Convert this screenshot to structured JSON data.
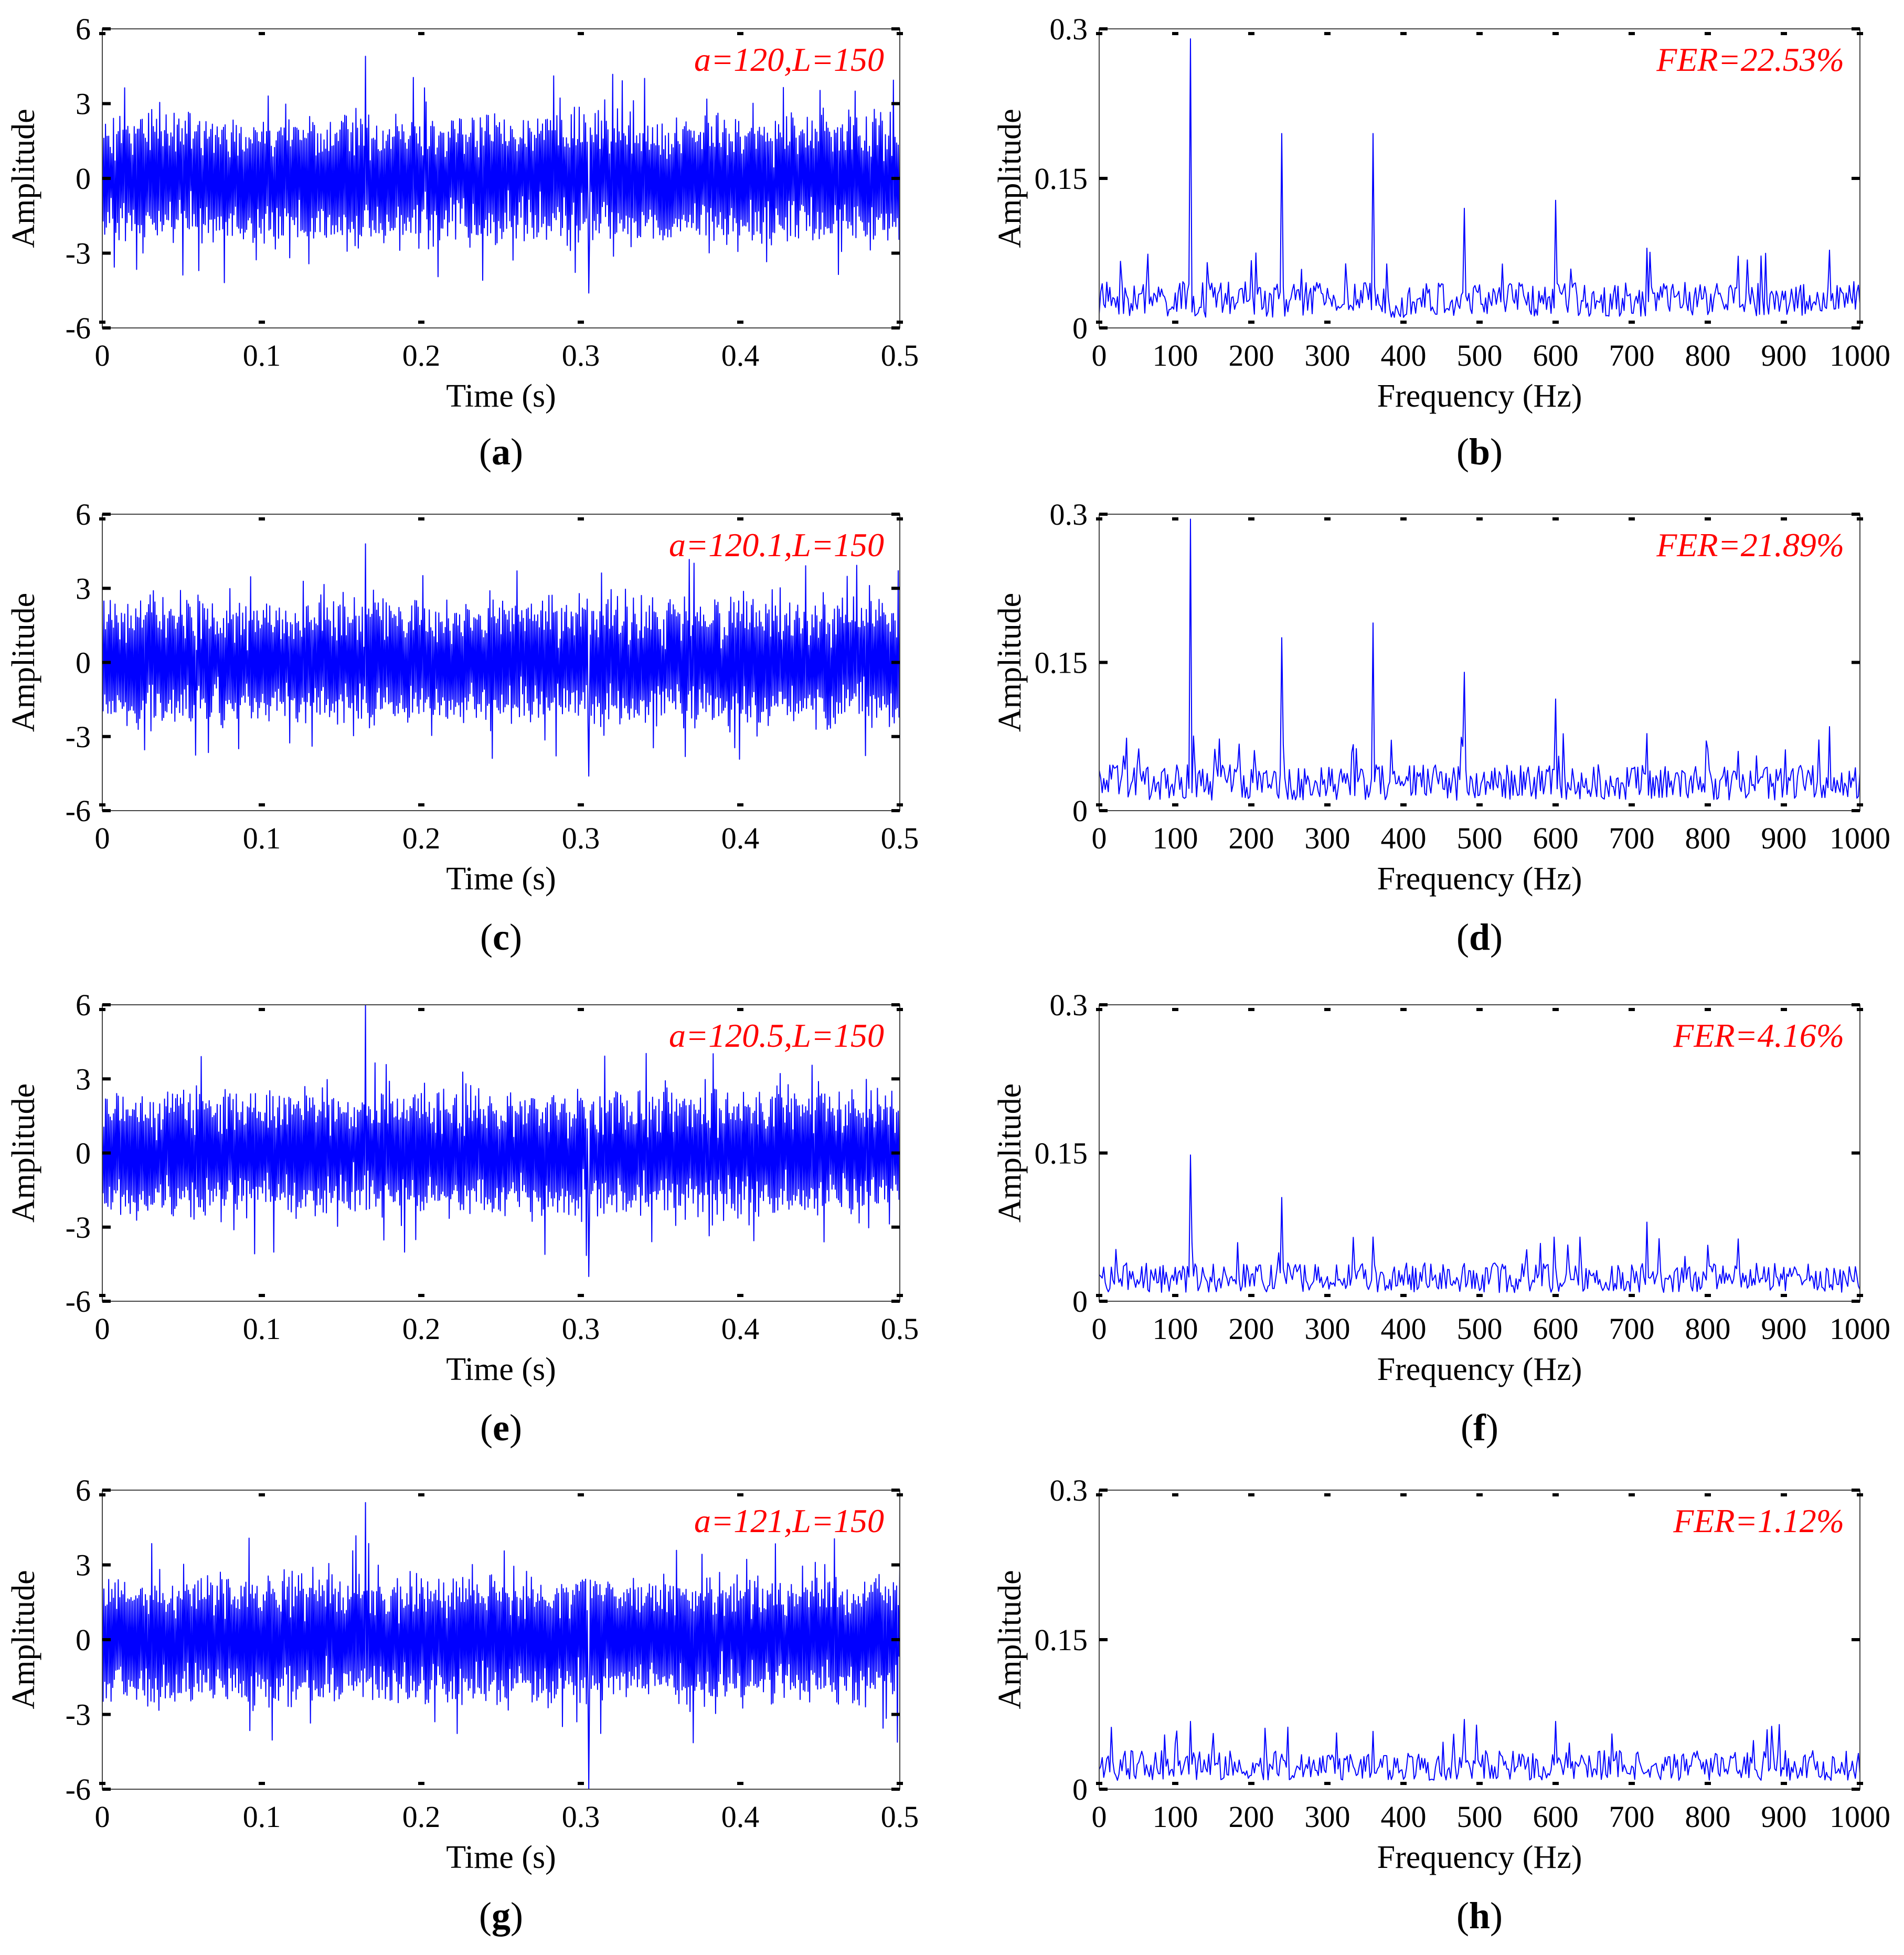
{
  "colors": {
    "signal": "#0000ff",
    "annotation": "#ff0000",
    "axis": "#000000"
  },
  "common": {
    "time_xlabel": "Time (s)",
    "freq_xlabel": "Frequency (Hz)",
    "ylabel": "Amplitude",
    "time_ticks_x": [
      "0",
      "0.1",
      "0.2",
      "0.3",
      "0.4",
      "0.5"
    ],
    "time_ticks_y": [
      "6",
      "3",
      "0",
      "-3",
      "-6"
    ],
    "freq_ticks_x": [
      "0",
      "100",
      "200",
      "300",
      "400",
      "500",
      "600",
      "700",
      "800",
      "900",
      "1000"
    ],
    "freq_ticks_y": [
      "0.3",
      "0.15",
      "0"
    ]
  },
  "chart_data": [
    {
      "type": "line",
      "panel_label": "a",
      "domain": "time",
      "title": "",
      "xlabel": "Time (s)",
      "ylabel": "Amplitude",
      "xlim": [
        0,
        0.5
      ],
      "ylim": [
        -6,
        6
      ],
      "grid": false,
      "annotation": "a=120,L=150",
      "series": [
        {
          "name": "signal",
          "sample_count": 1000,
          "approx_peak": 4.9,
          "approx_trough": -4.6,
          "rms_band": 2.0
        }
      ]
    },
    {
      "type": "line",
      "panel_label": "b",
      "domain": "frequency",
      "title": "",
      "xlabel": "Frequency (Hz)",
      "ylabel": "Amplitude",
      "xlim": [
        0,
        1000
      ],
      "ylim": [
        0,
        0.3
      ],
      "grid": false,
      "annotation": "FER=22.53%",
      "noise_floor": 0.03,
      "peaks": [
        {
          "x": 120,
          "y": 0.29
        },
        {
          "x": 240,
          "y": 0.195
        },
        {
          "x": 360,
          "y": 0.195
        },
        {
          "x": 480,
          "y": 0.12
        },
        {
          "x": 600,
          "y": 0.128
        },
        {
          "x": 720,
          "y": 0.08
        },
        {
          "x": 840,
          "y": 0.072
        },
        {
          "x": 960,
          "y": 0.078
        }
      ]
    },
    {
      "type": "line",
      "panel_label": "c",
      "domain": "time",
      "title": "",
      "xlabel": "Time (s)",
      "ylabel": "Amplitude",
      "xlim": [
        0,
        0.5
      ],
      "ylim": [
        -6,
        6
      ],
      "grid": false,
      "annotation": "a=120.1,L=150",
      "series": [
        {
          "name": "signal",
          "sample_count": 1000,
          "approx_peak": 4.8,
          "approx_trough": -4.6,
          "rms_band": 2.0
        }
      ]
    },
    {
      "type": "line",
      "panel_label": "d",
      "domain": "frequency",
      "title": "",
      "xlabel": "Frequency (Hz)",
      "ylabel": "Amplitude",
      "xlim": [
        0,
        1000
      ],
      "ylim": [
        0,
        0.3
      ],
      "grid": false,
      "annotation": "FER=21.89%",
      "noise_floor": 0.03,
      "peaks": [
        {
          "x": 120,
          "y": 0.295
        },
        {
          "x": 240,
          "y": 0.175
        },
        {
          "x": 360,
          "y": 0.19
        },
        {
          "x": 480,
          "y": 0.14
        },
        {
          "x": 600,
          "y": 0.113
        },
        {
          "x": 720,
          "y": 0.078
        },
        {
          "x": 840,
          "y": 0.06
        },
        {
          "x": 960,
          "y": 0.085
        }
      ]
    },
    {
      "type": "line",
      "panel_label": "e",
      "domain": "time",
      "title": "",
      "xlabel": "Time (s)",
      "ylabel": "Amplitude",
      "xlim": [
        0,
        0.5
      ],
      "ylim": [
        -6,
        6
      ],
      "grid": false,
      "annotation": "a=120.5,L=150",
      "series": [
        {
          "name": "signal",
          "sample_count": 1000,
          "approx_peak": 6.0,
          "approx_trough": -5.0,
          "rms_band": 2.0
        }
      ]
    },
    {
      "type": "line",
      "panel_label": "f",
      "domain": "frequency",
      "title": "",
      "xlabel": "Frequency (Hz)",
      "ylabel": "Amplitude",
      "xlim": [
        0,
        1000
      ],
      "ylim": [
        0,
        0.3
      ],
      "grid": false,
      "annotation": "FER=4.16%",
      "noise_floor": 0.025,
      "peaks": [
        {
          "x": 120,
          "y": 0.148
        },
        {
          "x": 240,
          "y": 0.105
        },
        {
          "x": 360,
          "y": 0.065
        },
        {
          "x": 720,
          "y": 0.08
        },
        {
          "x": 840,
          "y": 0.063
        }
      ]
    },
    {
      "type": "line",
      "panel_label": "g",
      "domain": "time",
      "title": "",
      "xlabel": "Time (s)",
      "ylabel": "Amplitude",
      "xlim": [
        0,
        0.5
      ],
      "ylim": [
        -6,
        6
      ],
      "grid": false,
      "annotation": "a=121,L=150",
      "series": [
        {
          "name": "signal",
          "sample_count": 1000,
          "approx_peak": 5.5,
          "approx_trough": -6.0,
          "rms_band": 2.0
        }
      ]
    },
    {
      "type": "line",
      "panel_label": "h",
      "domain": "frequency",
      "title": "",
      "xlabel": "Frequency (Hz)",
      "ylabel": "Amplitude",
      "xlim": [
        0,
        1000
      ],
      "ylim": [
        0,
        0.3
      ],
      "grid": false,
      "annotation": "FER=1.12%",
      "noise_floor": 0.025,
      "peaks": [
        {
          "x": 120,
          "y": 0.068
        },
        {
          "x": 360,
          "y": 0.058
        },
        {
          "x": 480,
          "y": 0.07
        },
        {
          "x": 600,
          "y": 0.068
        }
      ]
    }
  ]
}
